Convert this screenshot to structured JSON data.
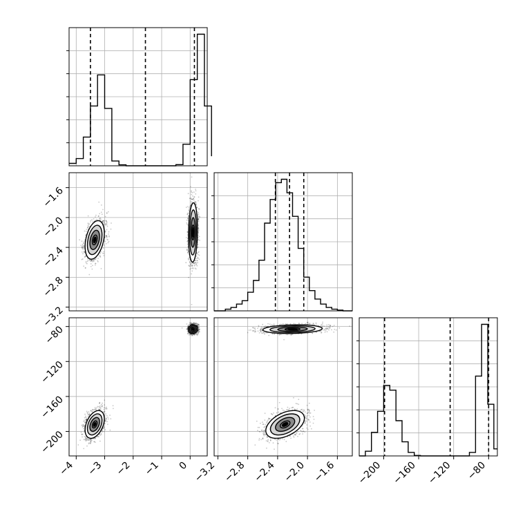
{
  "chart_data": {
    "type": "corner",
    "grid": true,
    "params": [
      {
        "index": 0,
        "range": [
          -4.25,
          0.6
        ],
        "ticks": [
          -4,
          -3,
          -2,
          -1,
          0
        ],
        "tick_labels": [
          "−4",
          "−3",
          "−2",
          "−1",
          "0"
        ],
        "quantiles": [
          -3.5,
          -1.57,
          0.15
        ],
        "hist": {
          "edges": [
            -4.25,
            -4.0,
            -3.75,
            -3.5,
            -3.25,
            -3.0,
            -2.75,
            -2.5,
            -2.25,
            -2.0,
            -1.75,
            -1.5,
            -1.25,
            -1.0,
            -0.75,
            -0.5,
            -0.25,
            0.0,
            0.25,
            0.5,
            0.75
          ],
          "counts": [
            0.01,
            0.03,
            0.12,
            0.25,
            0.38,
            0.24,
            0.02,
            0.004,
            0,
            0,
            0,
            0,
            0,
            0,
            0,
            0.005,
            0.09,
            0.36,
            0.55,
            0.25,
            0.04
          ]
        }
      },
      {
        "index": 1,
        "range": [
          -3.25,
          -1.4
        ],
        "ticks": [
          -3.2,
          -2.8,
          -2.4,
          -2.0,
          -1.6
        ],
        "tick_labels": [
          "−3.2",
          "−2.8",
          "−2.4",
          "−2.0",
          "−1.6"
        ],
        "quantiles": [
          -2.43,
          -2.24,
          -2.05
        ],
        "hist": {
          "edges": [
            -3.25,
            -3.175,
            -3.1,
            -3.025,
            -2.95,
            -2.875,
            -2.8,
            -2.725,
            -2.65,
            -2.575,
            -2.5,
            -2.425,
            -2.35,
            -2.275,
            -2.2,
            -2.125,
            -2.05,
            -1.975,
            -1.9,
            -1.825,
            -1.75,
            -1.675,
            -1.6,
            -1.525,
            -1.45,
            -1.4
          ],
          "counts": [
            0,
            0,
            0.005,
            0.01,
            0.02,
            0.03,
            0.055,
            0.09,
            0.15,
            0.26,
            0.33,
            0.38,
            0.39,
            0.35,
            0.28,
            0.185,
            0.1,
            0.06,
            0.035,
            0.02,
            0.01,
            0.005,
            0.002,
            0,
            0
          ]
        }
      },
      {
        "index": 2,
        "range": [
          -228,
          -70
        ],
        "ticks": [
          -200,
          -160,
          -120,
          -80
        ],
        "tick_labels": [
          "−200",
          "−160",
          "−120",
          "−80"
        ],
        "quantiles": [
          -199,
          -124,
          -80
        ],
        "hist": {
          "edges": [
            -228,
            -221,
            -214,
            -207,
            -200,
            -193,
            -186,
            -179,
            -172,
            -165,
            -158,
            -151,
            -144,
            -137,
            -130,
            -123,
            -116,
            -109,
            -102,
            -95,
            -88,
            -81,
            -74,
            -70
          ],
          "counts": [
            0,
            0.02,
            0.1,
            0.19,
            0.3,
            0.28,
            0.15,
            0.06,
            0.015,
            0.002,
            0,
            0,
            0,
            0,
            0,
            0,
            0,
            0,
            0.015,
            0.34,
            0.56,
            0.22,
            0.03
          ]
        }
      }
    ],
    "clusters": [
      {
        "mean": [
          -3.35,
          -2.3,
          -192
        ],
        "sd": [
          0.17,
          0.13,
          8
        ]
      },
      {
        "mean": [
          0.1,
          -2.2,
          -83
        ],
        "sd": [
          0.08,
          0.2,
          2.5
        ]
      }
    ],
    "pairs": [
      {
        "row": 1,
        "col": 0,
        "rho": [
          0.35,
          0.1
        ]
      },
      {
        "row": 2,
        "col": 0,
        "rho": [
          0.4,
          0.05
        ]
      },
      {
        "row": 2,
        "col": 1,
        "rho": [
          0.45,
          0.15
        ]
      }
    ],
    "contour_levels": [
      0.12,
      0.39,
      0.68,
      0.86
    ],
    "contour_fills": [
      "#ffffff",
      "#d4d4d4",
      "#8a8a8a",
      "#3a3a3a",
      "#000000"
    ]
  }
}
